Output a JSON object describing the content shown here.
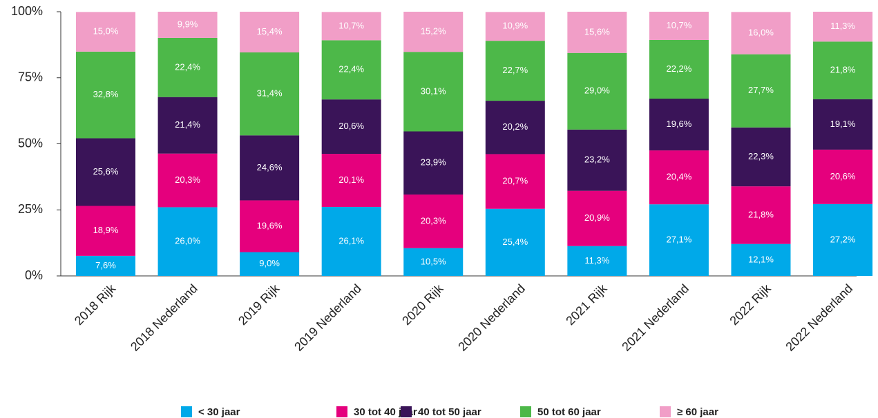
{
  "chart_data": {
    "type": "stacked_bar",
    "categories": [
      "2018 Rijk",
      "2018 Nederland",
      "2019 Rijk",
      "2019 Nederland",
      "2020 Rijk",
      "2020 Nederland",
      "2021 Rijk",
      "2021 Nederland",
      "2022 Rijk",
      "2022 Nederland"
    ],
    "series": [
      {
        "name": "< 30 jaar",
        "color": "#00a9e9",
        "values": [
          7.6,
          26.0,
          9.0,
          26.1,
          10.5,
          25.4,
          11.3,
          27.1,
          12.1,
          27.2
        ],
        "value_labels": [
          "7,6%",
          "26,0%",
          "9,0%",
          "26,1%",
          "10,5%",
          "25,4%",
          "11,3%",
          "27,1%",
          "12,1%",
          "27,2%"
        ]
      },
      {
        "name": "30 tot 40 jaar",
        "color": "#e5007d",
        "values": [
          18.9,
          20.3,
          19.6,
          20.1,
          20.3,
          20.7,
          20.9,
          20.4,
          21.8,
          20.6
        ],
        "value_labels": [
          "18,9%",
          "20,3%",
          "19,6%",
          "20,1%",
          "20,3%",
          "20,7%",
          "20,9%",
          "20,4%",
          "21,8%",
          "20,6%"
        ]
      },
      {
        "name": "40 tot 50 jaar",
        "color": "#3a1458",
        "values": [
          25.6,
          21.4,
          24.6,
          20.6,
          23.9,
          20.2,
          23.2,
          19.6,
          22.3,
          19.1
        ],
        "value_labels": [
          "25,6%",
          "21,4%",
          "24,6%",
          "20,6%",
          "23,9%",
          "20,2%",
          "23,2%",
          "19,6%",
          "22,3%",
          "19,1%"
        ]
      },
      {
        "name": "50 tot 60 jaar",
        "color": "#4db849",
        "values": [
          32.8,
          22.4,
          31.4,
          22.4,
          30.1,
          22.7,
          29.0,
          22.2,
          27.7,
          21.8
        ],
        "value_labels": [
          "32,8%",
          "22,4%",
          "31,4%",
          "22,4%",
          "30,1%",
          "22,7%",
          "29,0%",
          "22,2%",
          "27,7%",
          "21,8%"
        ]
      },
      {
        "name": "≥ 60 jaar",
        "color": "#f19ec7",
        "values": [
          15.0,
          9.9,
          15.4,
          10.7,
          15.2,
          10.9,
          15.6,
          10.7,
          16.0,
          11.3
        ],
        "value_labels": [
          "15,0%",
          "9,9%",
          "15,4%",
          "10,7%",
          "15,2%",
          "10,9%",
          "15,6%",
          "10,7%",
          "16,0%",
          "11,3%"
        ]
      }
    ],
    "ylim": [
      0,
      100
    ],
    "yticks": [
      {
        "value": 0,
        "label": "0%"
      },
      {
        "value": 25,
        "label": "25%"
      },
      {
        "value": 50,
        "label": "50%"
      },
      {
        "value": 75,
        "label": "75%"
      },
      {
        "value": 100,
        "label": "100%"
      }
    ],
    "grid": false,
    "legend": "bottom"
  }
}
